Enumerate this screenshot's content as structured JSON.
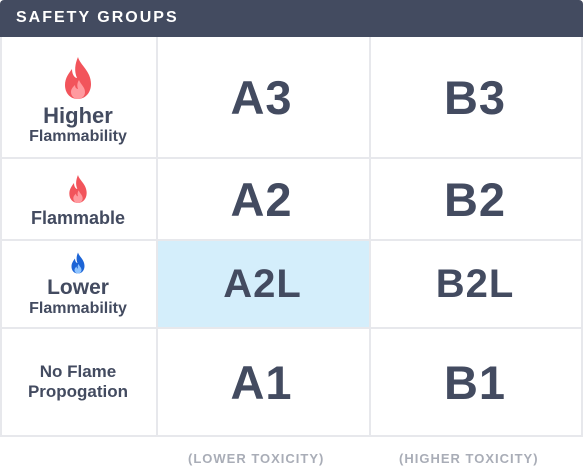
{
  "header": {
    "title": "SAFETY GROUPS"
  },
  "rows": [
    {
      "icon": "flame-icon",
      "icon_color": "#f2545b",
      "line1": "Higher",
      "line2": "Flammability"
    },
    {
      "icon": "flame-icon",
      "icon_color": "#f2545b",
      "line1": "Flammable",
      "line2": ""
    },
    {
      "icon": "flame-icon",
      "icon_color": "#1c64d6",
      "line1": "Lower",
      "line2": "Flammability"
    },
    {
      "icon": "",
      "icon_color": "",
      "line1": "No Flame",
      "line2": "Propogation"
    }
  ],
  "cells": {
    "a3": "A3",
    "b3": "B3",
    "a2": "A2",
    "b2": "B2",
    "a2l": "A2L",
    "b2l": "B2L",
    "a1": "A1",
    "b1": "B1"
  },
  "columns": {
    "lower": "(LOWER TOXICITY)",
    "higher": "(HIGHER TOXICITY)"
  },
  "colors": {
    "header_bg": "#434b60",
    "text": "#434b60",
    "highlight": "#d4eefb",
    "grid": "#e7e8ec",
    "footer_text": "#a9adb7"
  }
}
